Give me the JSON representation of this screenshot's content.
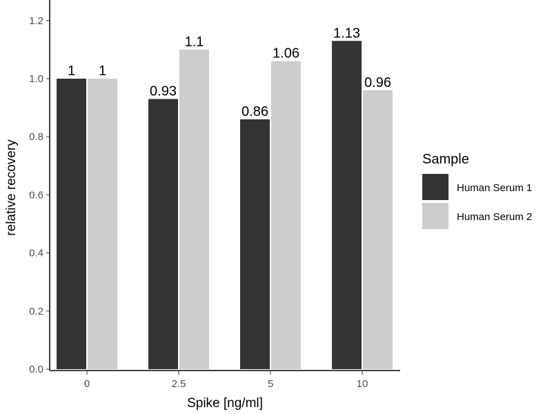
{
  "chart_data": {
    "type": "bar",
    "categories": [
      "0",
      "2.5",
      "5",
      "10"
    ],
    "series": [
      {
        "name": "Human Serum 1",
        "color": "#333333",
        "values": [
          1,
          0.93,
          0.86,
          1.13
        ],
        "labels": [
          "1",
          "0.93",
          "0.86",
          "1.13"
        ]
      },
      {
        "name": "Human Serum 2",
        "color": "#cccccc",
        "values": [
          1,
          1.1,
          1.06,
          0.96
        ],
        "labels": [
          "1",
          "1.1",
          "1.06",
          "0.96"
        ]
      }
    ],
    "xlabel": "Spike [ng/ml]",
    "ylabel": "relative recovery",
    "ylim": [
      0,
      1.25
    ],
    "yticks": [
      "0.0",
      "0.2",
      "0.4",
      "0.6",
      "0.8",
      "1.0",
      "1.2"
    ],
    "ytick_values": [
      0,
      0.2,
      0.4,
      0.6,
      0.8,
      1.0,
      1.2
    ],
    "legend": {
      "title": "Sample",
      "position": "right"
    },
    "grid": false
  }
}
